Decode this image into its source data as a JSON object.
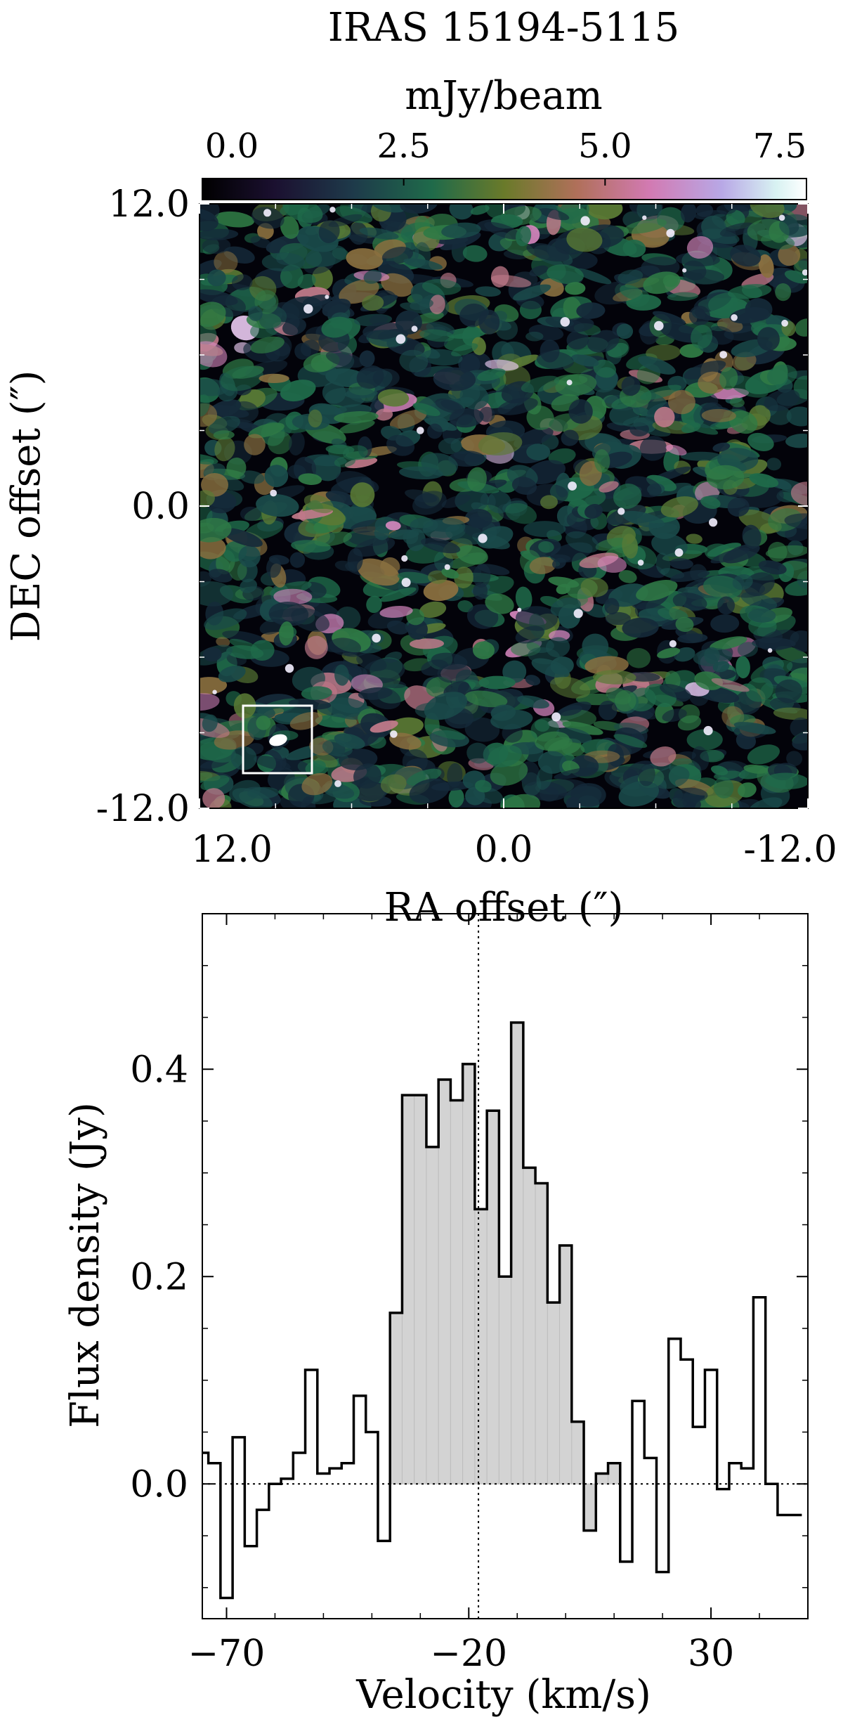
{
  "chart_data": [
    {
      "type": "heatmap",
      "title": "IRAS 15194-5115",
      "colorbar": {
        "label": "mJy/beam",
        "ticks": [
          "0.0",
          "2.5",
          "5.0",
          "7.5"
        ],
        "range": [
          0,
          7.5
        ]
      },
      "xlabel": "RA offset (″)",
      "ylabel": "DEC offset (″)",
      "xticks": [
        "12.0",
        "0.0",
        "-12.0"
      ],
      "yticks": [
        "12.0",
        "0.0",
        "-12.0"
      ],
      "xlim": [
        12.0,
        -12.0
      ],
      "ylim": [
        -12.0,
        12.0
      ],
      "beam": "white ellipse in lower-left inset box"
    },
    {
      "type": "line",
      "style": "step",
      "xlabel": "Velocity (km/s)",
      "ylabel": "Flux density (Jy)",
      "xticks": [
        "−70",
        "−20",
        "30"
      ],
      "yticks": [
        "0.0",
        "0.2",
        "0.4"
      ],
      "xlim": [
        -75,
        50
      ],
      "ylim": [
        -0.13,
        0.55
      ],
      "vline": -18,
      "hline": 0.0,
      "shaded_range": [
        -30,
        5
      ],
      "series": [
        {
          "x": [
            -75,
            -72.5,
            -70,
            -67.5,
            -65,
            -62.5,
            -60,
            -57.5,
            -55,
            -52.5,
            -50,
            -47.5,
            -45,
            -42.5,
            -40,
            -37.5,
            -35,
            -32.5,
            -30,
            -27.5,
            -25,
            -22.5,
            -20,
            -17.5,
            -15,
            -12.5,
            -10,
            -7.5,
            -5,
            -2.5,
            0,
            2.5,
            5,
            7.5,
            10,
            12.5,
            15,
            17.5,
            20,
            22.5,
            25,
            27.5,
            30,
            32.5,
            35,
            37.5,
            40,
            42.5,
            45,
            47.5
          ],
          "values": [
            0.03,
            0.02,
            -0.11,
            0.045,
            -0.06,
            -0.025,
            0.0,
            0.005,
            0.03,
            0.11,
            0.01,
            0.015,
            0.02,
            0.085,
            0.05,
            -0.055,
            0.165,
            0.375,
            0.375,
            0.325,
            0.39,
            0.37,
            0.405,
            0.265,
            0.36,
            0.2,
            0.445,
            0.305,
            0.29,
            0.175,
            0.23,
            0.06,
            -0.045,
            0.01,
            0.02,
            -0.075,
            0.08,
            0.025,
            -0.085,
            0.14,
            0.12,
            0.055,
            0.11,
            -0.005,
            0.02,
            0.015,
            0.18,
            0.0,
            -0.03,
            -0.03
          ]
        }
      ]
    }
  ]
}
